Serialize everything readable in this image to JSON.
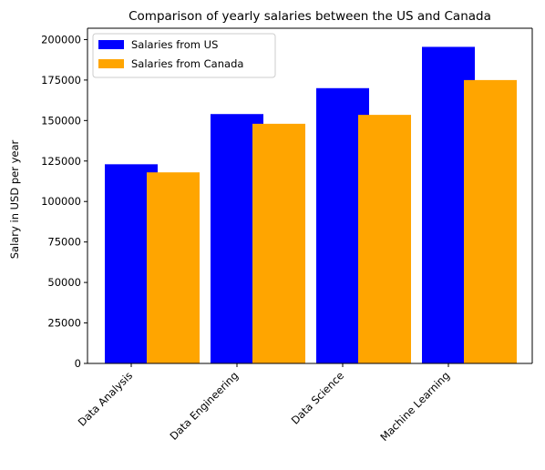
{
  "chart_data": {
    "type": "bar",
    "title": "Comparison of yearly salaries between the US and Canada",
    "xlabel": "",
    "ylabel": "Salary in USD per year",
    "categories": [
      "Data Analysis",
      "Data Engineering",
      "Data Science",
      "Machine Learning"
    ],
    "series": [
      {
        "name": "Salaries from US",
        "color": "#0000ff",
        "values": [
          123000,
          154000,
          170000,
          195500
        ]
      },
      {
        "name": "Salaries from Canada",
        "color": "#ffa500",
        "values": [
          118000,
          148000,
          153500,
          175000
        ]
      }
    ],
    "ylim": [
      0,
      207000
    ],
    "yticks": [
      0,
      25000,
      50000,
      75000,
      100000,
      125000,
      150000,
      175000,
      200000
    ],
    "grid": false,
    "legend_position": "top-left"
  }
}
